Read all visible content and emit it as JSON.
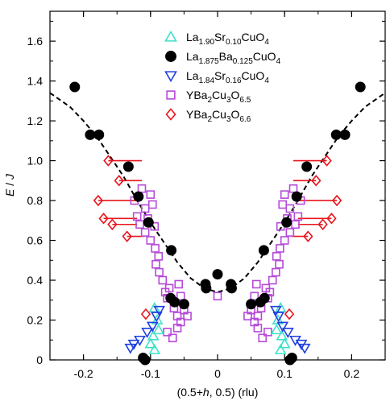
{
  "chart_data": {
    "type": "scatter",
    "xlabel_parts": [
      "(0.5+",
      "h",
      ", 0.5)  (rlu)"
    ],
    "ylabel_parts": [
      "E",
      " / ",
      "J"
    ],
    "xlim": [
      -0.25,
      0.25
    ],
    "ylim": [
      0,
      1.75
    ],
    "x_ticks": [
      -0.2,
      -0.1,
      0,
      0.1,
      0.2
    ],
    "x_tick_labels": [
      "-0.2",
      "-0.1",
      "0",
      "0.1",
      "0.2"
    ],
    "y_ticks": [
      0,
      0.2,
      0.4,
      0.6,
      0.8,
      1.0,
      1.2,
      1.4,
      1.6
    ],
    "y_tick_labels": [
      "0",
      "0.2",
      "0.4",
      "0.6",
      "0.8",
      "1.0",
      "1.2",
      "1.4",
      "1.6"
    ],
    "legend_position": "top-center",
    "series": [
      {
        "key": "lsco10",
        "name_parts": [
          [
            "La",
            ""
          ],
          [
            "1.90",
            "sub"
          ],
          [
            "Sr",
            ""
          ],
          [
            "0.10",
            "sub"
          ],
          [
            "CuO",
            ""
          ],
          [
            "4",
            "sub"
          ]
        ],
        "marker": "triangle-up",
        "color": "#40e0c8",
        "fill": "none",
        "points": [
          [
            -0.094,
            0.26
          ],
          [
            -0.09,
            0.2
          ],
          [
            -0.088,
            0.15
          ],
          [
            -0.096,
            0.12
          ],
          [
            -0.1,
            0.08
          ],
          [
            -0.094,
            0.05
          ],
          [
            0.094,
            0.26
          ],
          [
            0.09,
            0.2
          ],
          [
            0.088,
            0.15
          ],
          [
            0.096,
            0.12
          ],
          [
            0.1,
            0.08
          ],
          [
            0.094,
            0.05
          ]
        ]
      },
      {
        "key": "lbco",
        "name_parts": [
          [
            "La",
            ""
          ],
          [
            "1.875",
            "sub"
          ],
          [
            "Ba",
            ""
          ],
          [
            "0.125",
            "sub"
          ],
          [
            "CuO",
            ""
          ],
          [
            "4",
            "sub"
          ]
        ],
        "marker": "circle",
        "color": "#000000",
        "fill": "#000000",
        "points": [
          [
            -0.213,
            1.37
          ],
          [
            -0.19,
            1.13
          ],
          [
            -0.177,
            1.13
          ],
          [
            -0.133,
            0.97
          ],
          [
            -0.118,
            0.82
          ],
          [
            -0.103,
            0.69
          ],
          [
            -0.069,
            0.55
          ],
          [
            -0.07,
            0.31
          ],
          [
            -0.064,
            0.29
          ],
          [
            -0.05,
            0.28
          ],
          [
            -0.111,
            0.01
          ],
          [
            -0.108,
            0.0
          ],
          [
            -0.018,
            0.38
          ],
          [
            -0.017,
            0.36
          ],
          [
            0.0,
            0.43
          ],
          [
            0.02,
            0.38
          ],
          [
            0.021,
            0.36
          ],
          [
            0.213,
            1.37
          ],
          [
            0.19,
            1.13
          ],
          [
            0.177,
            1.13
          ],
          [
            0.133,
            0.97
          ],
          [
            0.118,
            0.82
          ],
          [
            0.103,
            0.69
          ],
          [
            0.069,
            0.55
          ],
          [
            0.07,
            0.31
          ],
          [
            0.064,
            0.29
          ],
          [
            0.05,
            0.28
          ],
          [
            0.111,
            0.01
          ],
          [
            0.108,
            0.0
          ]
        ]
      },
      {
        "key": "lsco16",
        "name_parts": [
          [
            "La",
            ""
          ],
          [
            "1.84",
            "sub"
          ],
          [
            "Sr",
            ""
          ],
          [
            "0.16",
            "sub"
          ],
          [
            "CuO",
            ""
          ],
          [
            "4",
            "sub"
          ]
        ],
        "marker": "triangle-down",
        "color": "#1f3fe0",
        "fill": "none",
        "points": [
          [
            -0.087,
            0.25
          ],
          [
            -0.091,
            0.22
          ],
          [
            -0.097,
            0.17
          ],
          [
            -0.105,
            0.14
          ],
          [
            -0.116,
            0.1
          ],
          [
            -0.125,
            0.08
          ],
          [
            -0.13,
            0.06
          ],
          [
            0.087,
            0.25
          ],
          [
            0.091,
            0.22
          ],
          [
            0.097,
            0.17
          ],
          [
            0.105,
            0.14
          ],
          [
            0.116,
            0.1
          ],
          [
            0.125,
            0.08
          ],
          [
            0.13,
            0.06
          ]
        ]
      },
      {
        "key": "ybco65",
        "name_parts": [
          [
            "YBa",
            ""
          ],
          [
            "2",
            "sub"
          ],
          [
            "Cu",
            ""
          ],
          [
            "3",
            "sub"
          ],
          [
            "O",
            ""
          ],
          [
            "6.5",
            "sub"
          ]
        ],
        "marker": "square",
        "color": "#b64ad8",
        "fill": "none",
        "points": [
          [
            -0.113,
            0.86
          ],
          [
            -0.1,
            0.83
          ],
          [
            -0.124,
            0.8
          ],
          [
            -0.108,
            0.76
          ],
          [
            -0.097,
            0.78
          ],
          [
            -0.12,
            0.72
          ],
          [
            -0.104,
            0.71
          ],
          [
            -0.116,
            0.68
          ],
          [
            -0.094,
            0.67
          ],
          [
            -0.108,
            0.64
          ],
          [
            -0.1,
            0.6
          ],
          [
            -0.093,
            0.56
          ],
          [
            -0.088,
            0.52
          ],
          [
            -0.092,
            0.48
          ],
          [
            -0.087,
            0.44
          ],
          [
            -0.082,
            0.4
          ],
          [
            -0.072,
            0.36
          ],
          [
            -0.058,
            0.38
          ],
          [
            -0.078,
            0.34
          ],
          [
            -0.075,
            0.31
          ],
          [
            -0.055,
            0.32
          ],
          [
            -0.065,
            0.26
          ],
          [
            -0.05,
            0.25
          ],
          [
            -0.06,
            0.22
          ],
          [
            -0.045,
            0.22
          ],
          [
            -0.055,
            0.19
          ],
          [
            -0.06,
            0.16
          ],
          [
            -0.075,
            0.14
          ],
          [
            -0.067,
            0.11
          ],
          [
            0.113,
            0.86
          ],
          [
            0.1,
            0.83
          ],
          [
            0.124,
            0.8
          ],
          [
            0.108,
            0.76
          ],
          [
            0.097,
            0.78
          ],
          [
            0.12,
            0.72
          ],
          [
            0.104,
            0.71
          ],
          [
            0.116,
            0.68
          ],
          [
            0.094,
            0.67
          ],
          [
            0.108,
            0.64
          ],
          [
            0.1,
            0.6
          ],
          [
            0.093,
            0.56
          ],
          [
            0.088,
            0.52
          ],
          [
            0.092,
            0.48
          ],
          [
            0.087,
            0.44
          ],
          [
            0.082,
            0.4
          ],
          [
            0.072,
            0.36
          ],
          [
            0.058,
            0.38
          ],
          [
            0.078,
            0.34
          ],
          [
            0.075,
            0.31
          ],
          [
            0.055,
            0.32
          ],
          [
            0.065,
            0.26
          ],
          [
            0.05,
            0.25
          ],
          [
            0.06,
            0.22
          ],
          [
            0.045,
            0.22
          ],
          [
            0.055,
            0.19
          ],
          [
            0.06,
            0.16
          ],
          [
            0.075,
            0.14
          ],
          [
            0.067,
            0.11
          ],
          [
            0.0,
            0.32
          ]
        ]
      },
      {
        "key": "ybco66",
        "name_parts": [
          [
            "YBa",
            ""
          ],
          [
            "2",
            "sub"
          ],
          [
            "Cu",
            ""
          ],
          [
            "3",
            "sub"
          ],
          [
            "O",
            ""
          ],
          [
            "6.6",
            "sub"
          ]
        ],
        "marker": "diamond",
        "color": "#e8141c",
        "fill": "none",
        "points": [
          [
            -0.163,
            1.0
          ],
          [
            -0.147,
            0.9
          ],
          [
            -0.178,
            0.8
          ],
          [
            -0.17,
            0.71
          ],
          [
            -0.157,
            0.68
          ],
          [
            -0.135,
            0.62
          ],
          [
            -0.107,
            0.23
          ],
          [
            0.163,
            1.0
          ],
          [
            0.147,
            0.9
          ],
          [
            0.178,
            0.8
          ],
          [
            0.17,
            0.71
          ],
          [
            0.157,
            0.68
          ],
          [
            0.135,
            0.62
          ],
          [
            0.107,
            0.23
          ]
        ]
      }
    ],
    "error_bars": [
      {
        "y": 1.0,
        "x1": -0.163,
        "x2": -0.113
      },
      {
        "y": 0.9,
        "x1": -0.147,
        "x2": -0.113
      },
      {
        "y": 0.8,
        "x1": -0.178,
        "x2": -0.12
      },
      {
        "y": 0.71,
        "x1": -0.17,
        "x2": -0.12
      },
      {
        "y": 0.68,
        "x1": -0.157,
        "x2": -0.12
      },
      {
        "y": 0.62,
        "x1": -0.135,
        "x2": -0.11
      },
      {
        "y": 1.0,
        "x1": 0.113,
        "x2": 0.163
      },
      {
        "y": 0.9,
        "x1": 0.113,
        "x2": 0.147
      },
      {
        "y": 0.8,
        "x1": 0.12,
        "x2": 0.178
      },
      {
        "y": 0.71,
        "x1": 0.12,
        "x2": 0.17
      },
      {
        "y": 0.68,
        "x1": 0.12,
        "x2": 0.157
      },
      {
        "y": 0.62,
        "x1": 0.11,
        "x2": 0.135
      }
    ],
    "dispersion_curve": {
      "style": "dashed",
      "color": "#000000",
      "points": [
        [
          -0.25,
          1.34
        ],
        [
          -0.22,
          1.27
        ],
        [
          -0.2,
          1.2
        ],
        [
          -0.18,
          1.12
        ],
        [
          -0.16,
          1.02
        ],
        [
          -0.14,
          0.92
        ],
        [
          -0.12,
          0.8
        ],
        [
          -0.1,
          0.69
        ],
        [
          -0.08,
          0.59
        ],
        [
          -0.06,
          0.49
        ],
        [
          -0.04,
          0.41
        ],
        [
          -0.02,
          0.36
        ],
        [
          0.0,
          0.34
        ],
        [
          0.02,
          0.36
        ],
        [
          0.04,
          0.41
        ],
        [
          0.06,
          0.49
        ],
        [
          0.08,
          0.59
        ],
        [
          0.1,
          0.69
        ],
        [
          0.12,
          0.8
        ],
        [
          0.14,
          0.92
        ],
        [
          0.16,
          1.02
        ],
        [
          0.18,
          1.12
        ],
        [
          0.2,
          1.2
        ],
        [
          0.22,
          1.27
        ],
        [
          0.25,
          1.34
        ]
      ]
    }
  }
}
